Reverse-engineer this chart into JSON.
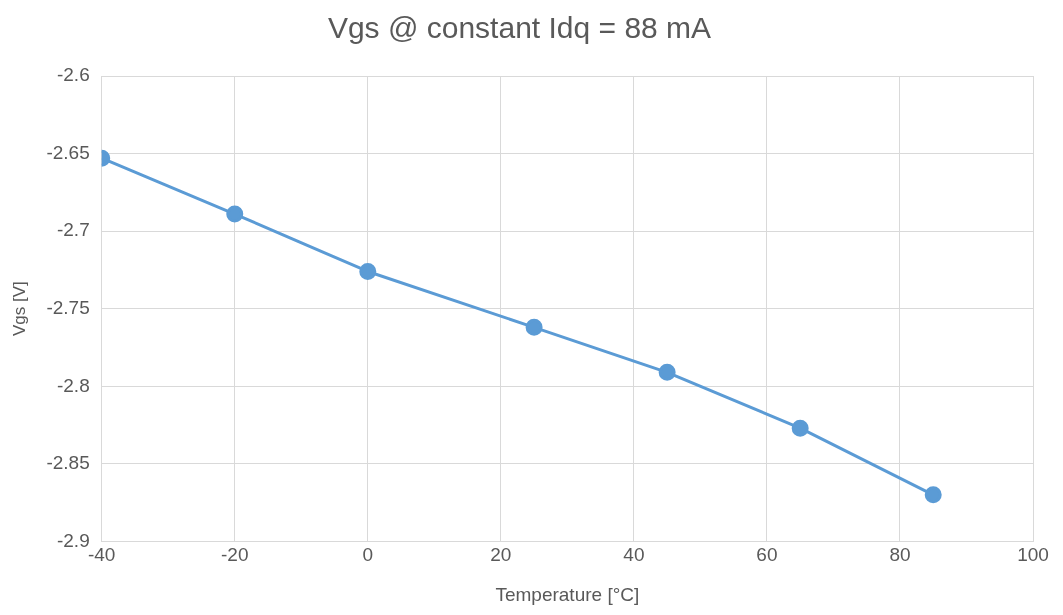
{
  "chart_data": {
    "type": "line",
    "title": "Vgs @ constant Idq = 88 mA",
    "xlabel": "Temperature [°C]",
    "ylabel": "Vgs [V]",
    "x": [
      -40,
      -20,
      0,
      25,
      45,
      65,
      85
    ],
    "series": [
      {
        "color": "#5b9bd5",
        "values": [
          -2.653,
          -2.689,
          -2.726,
          -2.762,
          -2.791,
          -2.827,
          -2.87
        ]
      }
    ],
    "xlim": [
      -40,
      100
    ],
    "xticks": [
      -40,
      -20,
      0,
      20,
      40,
      60,
      80,
      100
    ],
    "ylim": [
      -2.9,
      -2.6
    ],
    "yticks": [
      -2.9,
      -2.85,
      -2.8,
      -2.75,
      -2.7,
      -2.65,
      -2.6
    ],
    "grid": true,
    "legend": false,
    "marker": "circle",
    "line_style": "solid"
  }
}
